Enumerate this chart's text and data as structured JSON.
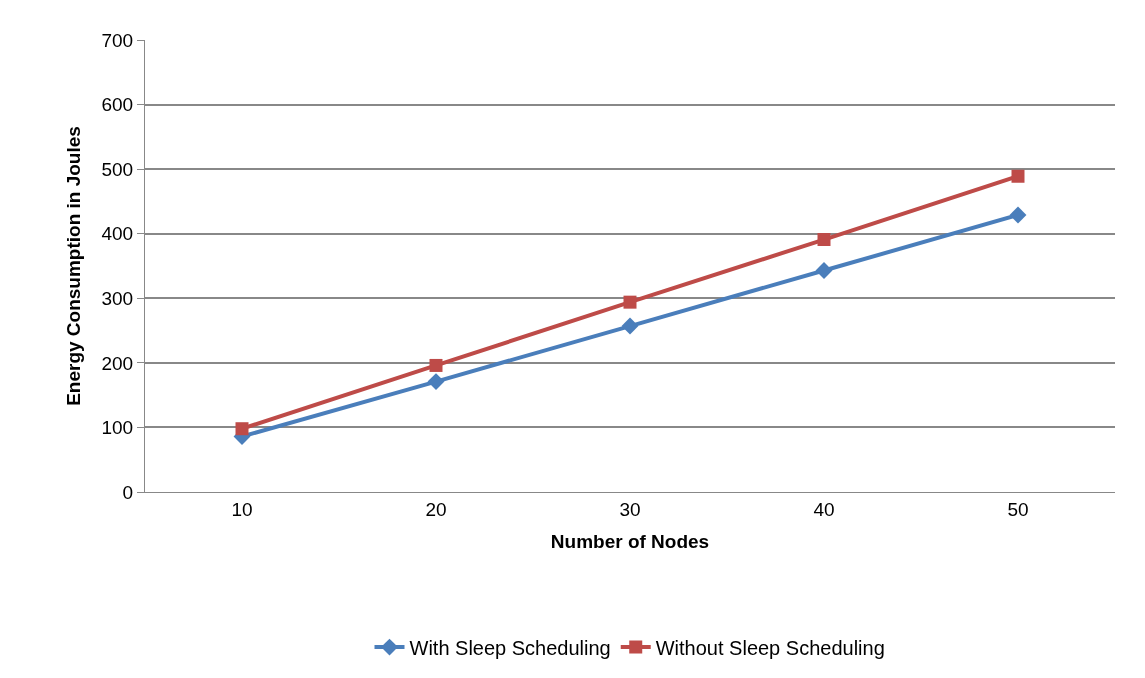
{
  "chart_data": {
    "type": "line",
    "xlabel": "Number of Nodes",
    "ylabel": "Energy Consumption in Joules",
    "categories": [
      "10",
      "20",
      "30",
      "40",
      "50"
    ],
    "series": [
      {
        "name": "With Sleep Scheduling",
        "color": "#4a7ebb",
        "marker": "diamond",
        "values": [
          86,
          171,
          257,
          343,
          429
        ]
      },
      {
        "name": "Without Sleep Scheduling",
        "color": "#be4b48",
        "marker": "square",
        "values": [
          98,
          196,
          294,
          391,
          489
        ]
      }
    ],
    "ylim": [
      0,
      700
    ],
    "yticks": [
      0,
      100,
      200,
      300,
      400,
      500,
      600,
      700
    ],
    "grid": "y",
    "legend": "bottom"
  }
}
